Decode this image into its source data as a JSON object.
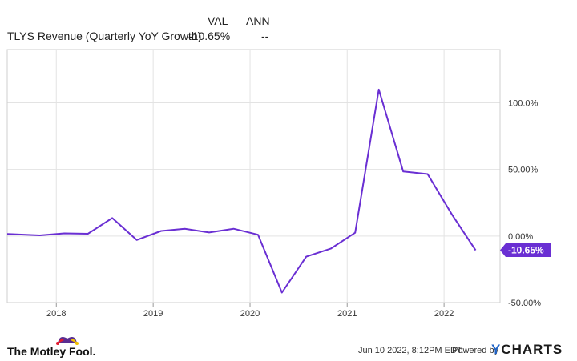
{
  "header": {
    "col_val": "VAL",
    "col_ann": "ANN",
    "series_label": "TLYS Revenue (Quarterly YoY Growth)",
    "series_val": "-10.65%",
    "series_ann": "--"
  },
  "footer": {
    "brand": "The Motley Fool.",
    "timestamp": "Jun 10 2022, 8:12PM EDT.",
    "powered_by": "Powered by",
    "ycharts_y": "Y",
    "ycharts_rest": "CHARTS"
  },
  "colors": {
    "line": "#6a2fd3",
    "grid": "#e3e3e3",
    "axis_text": "#333333",
    "motley_red": "#e21b2d",
    "motley_purple": "#5a2d91",
    "motley_yellow": "#f3c300",
    "ycharts_blue": "#1f63c6"
  },
  "chart_data": {
    "type": "line",
    "x_ticks": [
      "2018",
      "2019",
      "2020",
      "2021",
      "2022"
    ],
    "y_ticks": [
      "100.0%",
      "50.00%",
      "0.00%",
      "-50.00%"
    ],
    "y_tick_values": [
      100,
      50,
      0,
      -50
    ],
    "ylim": [
      -50,
      140
    ],
    "xlim": [
      "2017-06-30",
      "2022-07-31"
    ],
    "series": [
      {
        "x": [
          "2017-06-30",
          "2017-10-31",
          "2018-01-31",
          "2018-04-30",
          "2018-07-31",
          "2018-10-31",
          "2019-01-31",
          "2019-04-30",
          "2019-07-31",
          "2019-10-31",
          "2020-01-31",
          "2020-04-30",
          "2020-07-31",
          "2020-10-31",
          "2021-01-31",
          "2021-04-30",
          "2021-07-31",
          "2021-10-31",
          "2022-01-31",
          "2022-04-30"
        ],
        "y": [
          1.5,
          0.5,
          2.0,
          1.7,
          13.5,
          -3.0,
          3.8,
          5.5,
          2.7,
          5.5,
          1.0,
          -42.5,
          -15.5,
          -9.5,
          2.5,
          110.0,
          48.5,
          46.5,
          16.0,
          -10.65
        ]
      }
    ],
    "last_value_label": "-10.65%"
  }
}
